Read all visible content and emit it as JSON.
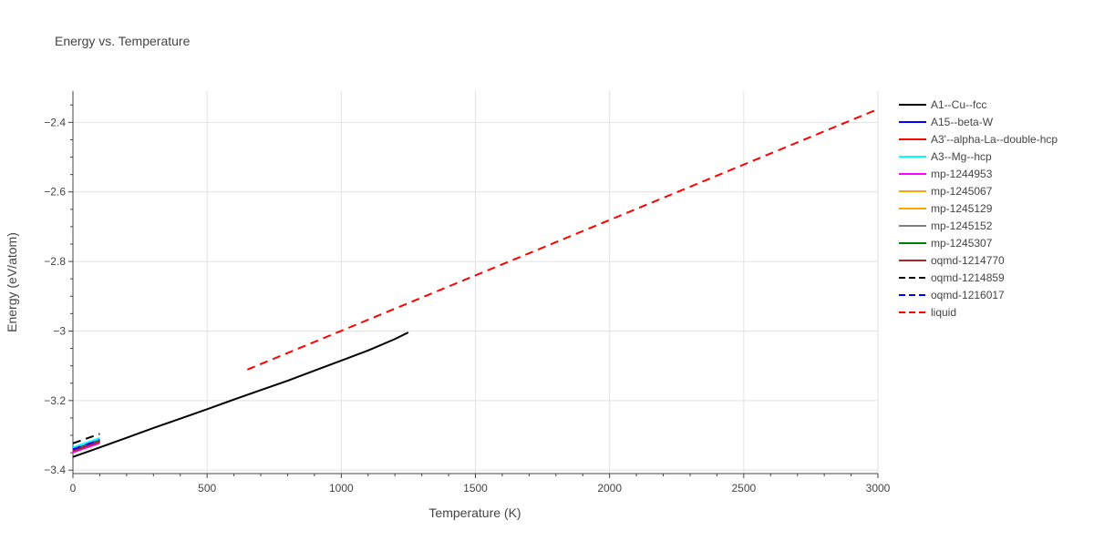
{
  "chart_data": {
    "type": "line",
    "title": "Energy vs. Temperature",
    "xlabel": "Temperature (K)",
    "ylabel": "Energy (eV/atom)",
    "xlim": [
      0,
      3000
    ],
    "ylim": [
      -3.41,
      -2.31
    ],
    "x_ticks": [
      0,
      500,
      1000,
      1500,
      2000,
      2500,
      3000
    ],
    "x_tick_labels": [
      "0",
      "500",
      "1000",
      "1500",
      "2000",
      "2500",
      "3000"
    ],
    "y_ticks": [
      -3.4,
      -3.2,
      -3.0,
      -2.8,
      -2.6,
      -2.4
    ],
    "y_tick_labels": [
      "−3.4",
      "−3.2",
      "−3",
      "−2.8",
      "−2.6",
      "−2.4"
    ],
    "grid": true,
    "legend_position": "right",
    "series": [
      {
        "name": "A1--Cu--fcc",
        "color": "#000000",
        "dash": "solid",
        "x": [
          0,
          100,
          200,
          300,
          400,
          500,
          600,
          700,
          800,
          900,
          1000,
          1100,
          1200,
          1250
        ],
        "y": [
          -3.362,
          -3.335,
          -3.307,
          -3.279,
          -3.252,
          -3.225,
          -3.197,
          -3.17,
          -3.143,
          -3.114,
          -3.085,
          -3.056,
          -3.023,
          -3.004
        ]
      },
      {
        "name": "A15--beta-W",
        "color": "#0000ff",
        "dash": "solid",
        "x": [
          0,
          100
        ],
        "y": [
          -3.341,
          -3.314
        ]
      },
      {
        "name": "A3'--alpha-La--double-hcp",
        "color": "#ff0000",
        "dash": "solid",
        "x": [
          0,
          100
        ],
        "y": [
          -3.346,
          -3.319
        ]
      },
      {
        "name": "A3--Mg--hcp",
        "color": "#00ffff",
        "dash": "solid",
        "x": [
          0,
          100
        ],
        "y": [
          -3.335,
          -3.308
        ]
      },
      {
        "name": "mp-1244953",
        "color": "#ff00ff",
        "dash": "solid",
        "x": [
          0,
          100
        ],
        "y": [
          -3.349,
          -3.322
        ]
      },
      {
        "name": "mp-1245067",
        "color": "#ffa500",
        "dash": "solid",
        "x": [
          0,
          100
        ],
        "y": [
          -3.344,
          -3.317
        ]
      },
      {
        "name": "mp-1245129",
        "color": "#ffa500",
        "dash": "solid",
        "x": [
          0,
          100
        ],
        "y": [
          -3.343,
          -3.316
        ]
      },
      {
        "name": "mp-1245152",
        "color": "#808080",
        "dash": "solid",
        "x": [
          0,
          100
        ],
        "y": [
          -3.342,
          -3.315
        ]
      },
      {
        "name": "mp-1245307",
        "color": "#008000",
        "dash": "solid",
        "x": [
          0,
          100
        ],
        "y": [
          -3.343,
          -3.316
        ]
      },
      {
        "name": "oqmd-1214770",
        "color": "#a52a2a",
        "dash": "solid",
        "x": [
          0,
          100
        ],
        "y": [
          -3.345,
          -3.318
        ]
      },
      {
        "name": "oqmd-1214859",
        "color": "#000000",
        "dash": "dash",
        "x": [
          0,
          100
        ],
        "y": [
          -3.323,
          -3.296
        ]
      },
      {
        "name": "oqmd-1216017",
        "color": "#0000ff",
        "dash": "dash",
        "x": [
          0,
          100
        ],
        "y": [
          -3.34,
          -3.313
        ]
      },
      {
        "name": "liquid",
        "color": "#ff0000",
        "dash": "dash",
        "x": [
          650,
          3000
        ],
        "y": [
          -3.111,
          -2.362
        ]
      }
    ]
  }
}
